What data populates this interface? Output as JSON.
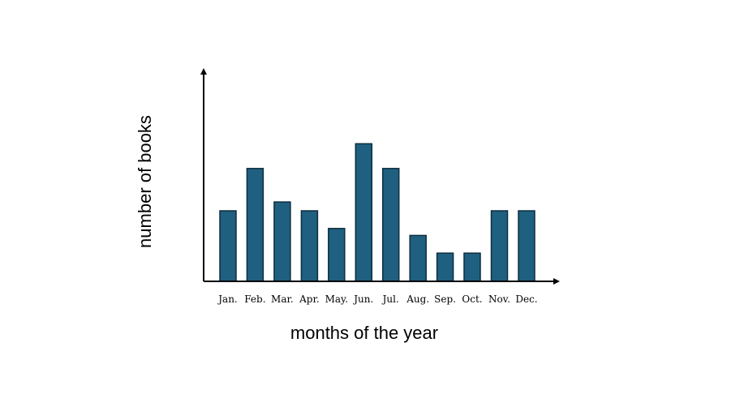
{
  "chart_data": {
    "type": "bar",
    "categories": [
      "Jan.",
      "Feb.",
      "Mar.",
      "Apr.",
      "May.",
      "Jun.",
      "Jul.",
      "Aug.",
      "Sep.",
      "Oct.",
      "Nov.",
      "Dec."
    ],
    "values": [
      4,
      6.4,
      4.5,
      4,
      3,
      7.8,
      6.4,
      2.6,
      1.6,
      1.6,
      4,
      4
    ],
    "title": "",
    "xlabel": "months of the year",
    "ylabel": "number of books",
    "ylim": [
      0,
      12
    ],
    "grid": false,
    "legend": "none",
    "bar_color": "#1f5f7f",
    "bar_edge_color": "#0d2f40",
    "axis_color": "#000000"
  }
}
